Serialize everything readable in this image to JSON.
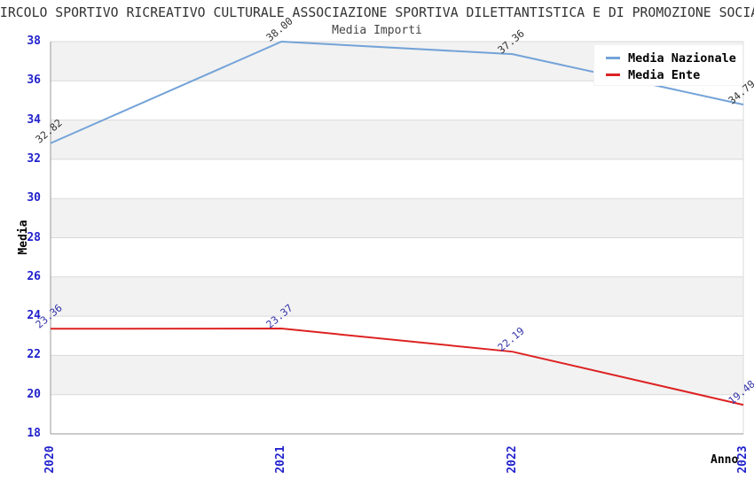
{
  "chart_data": {
    "type": "line",
    "title": "CIRCOLO SPORTIVO RICREATIVO CULTURALE ASSOCIAZIONE SPORTIVA DILETTANTISTICA E DI PROMOZIONE SOCIALE",
    "subtitle": "Media Importi",
    "xlabel": "Anno",
    "ylabel": "Media",
    "categories": [
      "2020",
      "2021",
      "2022",
      "2023"
    ],
    "series": [
      {
        "name": "Media Nazionale",
        "values": [
          32.82,
          38.0,
          37.36,
          34.79
        ],
        "value_labels": [
          "32.82",
          "38.00",
          "37.36",
          "34.79"
        ],
        "color": "#74a3d8",
        "label_color": "#333333"
      },
      {
        "name": "Media Ente",
        "values": [
          23.36,
          23.37,
          22.19,
          19.48
        ],
        "value_labels": [
          "23.36",
          "23.37",
          "22.19",
          "19.48"
        ],
        "color": "#dd2222",
        "label_color": "#3333aa"
      }
    ],
    "ylim": [
      18,
      38
    ],
    "yticks": [
      18,
      20,
      22,
      24,
      26,
      28,
      30,
      32,
      34,
      36,
      38
    ],
    "grid": true,
    "legend_position": "top-right",
    "colors": {
      "tick_label": "#2222cc",
      "band": "#f2f2f2",
      "gridline": "#d9d9d9",
      "axis": "#999999",
      "title": "#333333"
    }
  }
}
